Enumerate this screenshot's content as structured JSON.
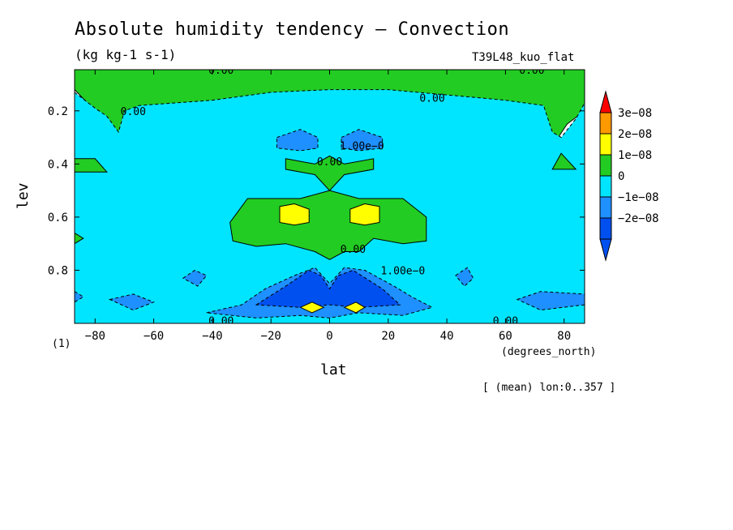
{
  "chart_data": {
    "type": "heatmap",
    "title": "Absolute humidity tendency — Convection",
    "units": "(kg kg-1 s-1)",
    "run_label": "T39L48_kuo_flat",
    "xlabel": "lat",
    "xunits": "(degrees_north)",
    "ylabel": "lev",
    "page_tag": "(1)",
    "subset_note": "[ (mean) lon:0..357 ]",
    "x_ticks": [
      -80,
      -60,
      -40,
      -20,
      0,
      20,
      40,
      60,
      80
    ],
    "x_tick_labels": [
      "−80",
      "−60",
      "−40",
      "−20",
      "0",
      "20",
      "40",
      "60",
      "80"
    ],
    "xlim": [
      -87,
      87
    ],
    "y_ticks": [
      0.2,
      0.4,
      0.6,
      0.8
    ],
    "y_tick_labels": [
      "0.2",
      "0.4",
      "0.6",
      "0.8"
    ],
    "ylim": [
      1.0,
      0.045
    ],
    "y_inverted": true,
    "legend": {
      "placement": "right",
      "levels": [
        {
          "label": "3e−08",
          "color": "#ff9900"
        },
        {
          "label": "2e−08",
          "color": "#ffff00"
        },
        {
          "label": "1e−08",
          "color": "#22cc22"
        },
        {
          "label": "0",
          "color": "#00e5ff"
        },
        {
          "label": "−1e−08",
          "color": "#1e90ff"
        },
        {
          "label": "−2e−08",
          "color": "#0050f0"
        }
      ],
      "over_color": "#ff0000",
      "under_color": "#0050f0"
    },
    "contour_labels": [
      {
        "text": "0.00",
        "lat": -37,
        "lev": 0.045
      },
      {
        "text": "0.00",
        "lat": 69,
        "lev": 0.045
      },
      {
        "text": "0.00",
        "lat": -67,
        "lev": 0.2
      },
      {
        "text": "0.00",
        "lat": 35,
        "lev": 0.15
      },
      {
        "text": "1.00e−0",
        "lat": 11,
        "lev": 0.33
      },
      {
        "text": "0.00",
        "lat": 0,
        "lev": 0.39
      },
      {
        "text": "0.00",
        "lat": 8,
        "lev": 0.72
      },
      {
        "text": "1.00e−0",
        "lat": 25,
        "lev": 0.8
      },
      {
        "text": "0.00",
        "lat": -37,
        "lev": 0.99
      },
      {
        "text": "0.00",
        "lat": 60,
        "lev": 0.99
      }
    ],
    "regions": [
      {
        "label": "0",
        "color": "#22cc22",
        "points": [
          [
            -87,
            0.045
          ],
          [
            87,
            0.045
          ],
          [
            87,
            0.2
          ],
          [
            81,
            0.25
          ],
          [
            78,
            0.3
          ],
          [
            72,
            0.38
          ],
          [
            -72,
            0.38
          ],
          [
            -75,
            0.28
          ],
          [
            -80,
            0.2
          ],
          [
            -87,
            0.12
          ]
        ]
      },
      {
        "label": "−1e−08",
        "color": "#00e5ff",
        "points": [
          [
            -87,
            0.13
          ],
          [
            -80,
            0.19
          ],
          [
            -76,
            0.22
          ],
          [
            -72,
            0.28
          ],
          [
            -70,
            0.2
          ],
          [
            -65,
            0.18
          ],
          [
            -40,
            0.16
          ],
          [
            -20,
            0.13
          ],
          [
            0,
            0.12
          ],
          [
            20,
            0.12
          ],
          [
            40,
            0.14
          ],
          [
            60,
            0.16
          ],
          [
            73,
            0.18
          ],
          [
            76,
            0.28
          ],
          [
            79,
            0.3
          ],
          [
            84,
            0.23
          ],
          [
            87,
            0.17
          ],
          [
            87,
            1.0
          ],
          [
            -87,
            1.0
          ]
        ]
      },
      {
        "label": "0",
        "color": "#22cc22",
        "points": [
          [
            -87,
            0.38
          ],
          [
            -80,
            0.38
          ],
          [
            -76,
            0.43
          ],
          [
            -87,
            0.43
          ]
        ]
      },
      {
        "label": "0",
        "color": "#22cc22",
        "points": [
          [
            76,
            0.42
          ],
          [
            79,
            0.36
          ],
          [
            84,
            0.42
          ]
        ]
      },
      {
        "label": "0",
        "color": "#22cc22",
        "points": [
          [
            -87,
            0.66
          ],
          [
            -84,
            0.68
          ],
          [
            -87,
            0.7
          ]
        ]
      },
      {
        "label": "0",
        "color": "#22cc22",
        "points": [
          [
            -15,
            0.38
          ],
          [
            -5,
            0.4
          ],
          [
            0,
            0.37
          ],
          [
            5,
            0.4
          ],
          [
            15,
            0.38
          ],
          [
            15,
            0.42
          ],
          [
            5,
            0.44
          ],
          [
            0,
            0.5
          ],
          [
            10,
            0.53
          ],
          [
            25,
            0.53
          ],
          [
            33,
            0.6
          ],
          [
            33,
            0.69
          ],
          [
            25,
            0.7
          ],
          [
            15,
            0.68
          ],
          [
            10,
            0.73
          ],
          [
            5,
            0.73
          ],
          [
            0,
            0.76
          ],
          [
            -5,
            0.73
          ],
          [
            -15,
            0.7
          ],
          [
            -25,
            0.71
          ],
          [
            -33,
            0.69
          ],
          [
            -34,
            0.62
          ],
          [
            -28,
            0.53
          ],
          [
            -10,
            0.53
          ],
          [
            0,
            0.5
          ],
          [
            -5,
            0.44
          ],
          [
            -15,
            0.42
          ]
        ]
      },
      {
        "label": "1e−08",
        "color": "#ffff00",
        "points": [
          [
            -17,
            0.56
          ],
          [
            -12,
            0.55
          ],
          [
            -7,
            0.57
          ],
          [
            -7,
            0.62
          ],
          [
            -12,
            0.63
          ],
          [
            -17,
            0.62
          ]
        ]
      },
      {
        "label": "1e−08",
        "color": "#ffff00",
        "points": [
          [
            7,
            0.57
          ],
          [
            12,
            0.55
          ],
          [
            17,
            0.56
          ],
          [
            17,
            0.62
          ],
          [
            12,
            0.63
          ],
          [
            7,
            0.62
          ]
        ]
      },
      {
        "label": "−2e−08",
        "color": "#1e90ff",
        "points": [
          [
            -18,
            0.3
          ],
          [
            -10,
            0.27
          ],
          [
            -4,
            0.3
          ],
          [
            -4,
            0.34
          ],
          [
            -10,
            0.35
          ],
          [
            -18,
            0.34
          ]
        ]
      },
      {
        "label": "−2e−08",
        "color": "#1e90ff",
        "points": [
          [
            4,
            0.3
          ],
          [
            10,
            0.27
          ],
          [
            18,
            0.3
          ],
          [
            18,
            0.34
          ],
          [
            10,
            0.35
          ],
          [
            4,
            0.34
          ]
        ]
      },
      {
        "label": "−1e−08",
        "color": "#1e90ff",
        "points": [
          [
            -42,
            0.96
          ],
          [
            -30,
            0.93
          ],
          [
            -22,
            0.87
          ],
          [
            -12,
            0.82
          ],
          [
            -5,
            0.79
          ],
          [
            0,
            0.85
          ],
          [
            5,
            0.79
          ],
          [
            12,
            0.8
          ],
          [
            22,
            0.86
          ],
          [
            28,
            0.9
          ],
          [
            35,
            0.94
          ],
          [
            25,
            0.97
          ],
          [
            10,
            0.96
          ],
          [
            0,
            0.98
          ],
          [
            -10,
            0.97
          ],
          [
            -25,
            0.98
          ]
        ]
      },
      {
        "label": "−2e−08",
        "color": "#0050f0",
        "points": [
          [
            -25,
            0.93
          ],
          [
            -15,
            0.86
          ],
          [
            -7,
            0.8
          ],
          [
            -3,
            0.82
          ],
          [
            0,
            0.87
          ],
          [
            3,
            0.82
          ],
          [
            8,
            0.8
          ],
          [
            18,
            0.87
          ],
          [
            24,
            0.93
          ],
          [
            10,
            0.94
          ],
          [
            0,
            0.93
          ],
          [
            -10,
            0.94
          ]
        ]
      },
      {
        "label": "1e−08",
        "color": "#ffff00",
        "points": [
          [
            -10,
            0.94
          ],
          [
            -6,
            0.92
          ],
          [
            -2,
            0.94
          ],
          [
            -6,
            0.96
          ]
        ]
      },
      {
        "label": "1e−08",
        "color": "#ffff00",
        "points": [
          [
            5,
            0.94
          ],
          [
            9,
            0.92
          ],
          [
            12,
            0.94
          ],
          [
            9,
            0.96
          ]
        ]
      },
      {
        "label": "−1e−08",
        "color": "#1e90ff",
        "points": [
          [
            -50,
            0.83
          ],
          [
            -46,
            0.8
          ],
          [
            -42,
            0.82
          ],
          [
            -45,
            0.86
          ]
        ]
      },
      {
        "label": "−1e−08",
        "color": "#1e90ff",
        "points": [
          [
            -75,
            0.91
          ],
          [
            -67,
            0.89
          ],
          [
            -60,
            0.92
          ],
          [
            -67,
            0.95
          ]
        ]
      },
      {
        "label": "−1e−08",
        "color": "#1e90ff",
        "points": [
          [
            -87,
            0.88
          ],
          [
            -84,
            0.9
          ],
          [
            -87,
            0.92
          ]
        ]
      },
      {
        "label": "−1e−08",
        "color": "#1e90ff",
        "points": [
          [
            43,
            0.82
          ],
          [
            47,
            0.79
          ],
          [
            49,
            0.83
          ],
          [
            46,
            0.86
          ]
        ]
      },
      {
        "label": "−1e−08",
        "color": "#1e90ff",
        "points": [
          [
            64,
            0.91
          ],
          [
            72,
            0.88
          ],
          [
            87,
            0.89
          ],
          [
            87,
            0.93
          ],
          [
            72,
            0.95
          ]
        ]
      }
    ]
  }
}
